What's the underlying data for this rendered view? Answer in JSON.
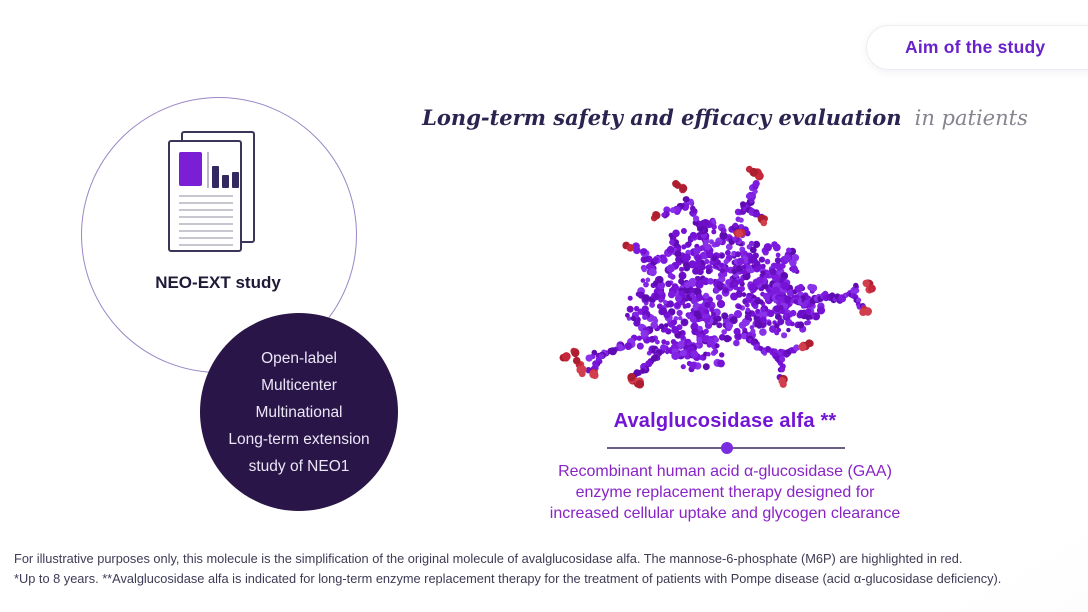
{
  "colors": {
    "accent_purple": "#7315d4",
    "deep_purple_circle": "#2a1548",
    "molecule_purples": [
      "#7611d6",
      "#6b0ec6",
      "#8224e4",
      "#5f0bb2",
      "#7d1add",
      "#8a32ea"
    ],
    "molecule_reds": [
      "#c4283a",
      "#d13f4e",
      "#ad1f30"
    ],
    "outline_circle_stroke": "#9b87c6"
  },
  "badge": {
    "label": "Aim of the study"
  },
  "neo_ext": {
    "label": "NEO-EXT study",
    "icon": "document-bar-chart-icon"
  },
  "attributes_circle": {
    "items": [
      "Open-label",
      "Multicenter",
      "Multinational",
      "Long-term extension study of NEO1"
    ]
  },
  "headline": {
    "emphasis": "Long-term safety and efficacy evaluation",
    "suffix": "in patients"
  },
  "molecule": {
    "name": "Avalglucosidase alfa **",
    "image_alt": "molecule-illustration",
    "description_lines": [
      "Recombinant human acid α-glucosidase (GAA)",
      "enzyme replacement therapy designed for",
      "increased cellular uptake and glycogen clearance"
    ]
  },
  "footnotes": [
    "For illustrative purposes only, this molecule is the simplification of the original molecule of avalglucosidase alfa. The mannose-6-phosphate (M6P) are highlighted in red.",
    "*Up to 8 years. **Avalglucosidase alfa is indicated for long-term enzyme replacement therapy for the treatment of patients with Pompe disease (acid α-glucosidase deficiency)."
  ]
}
